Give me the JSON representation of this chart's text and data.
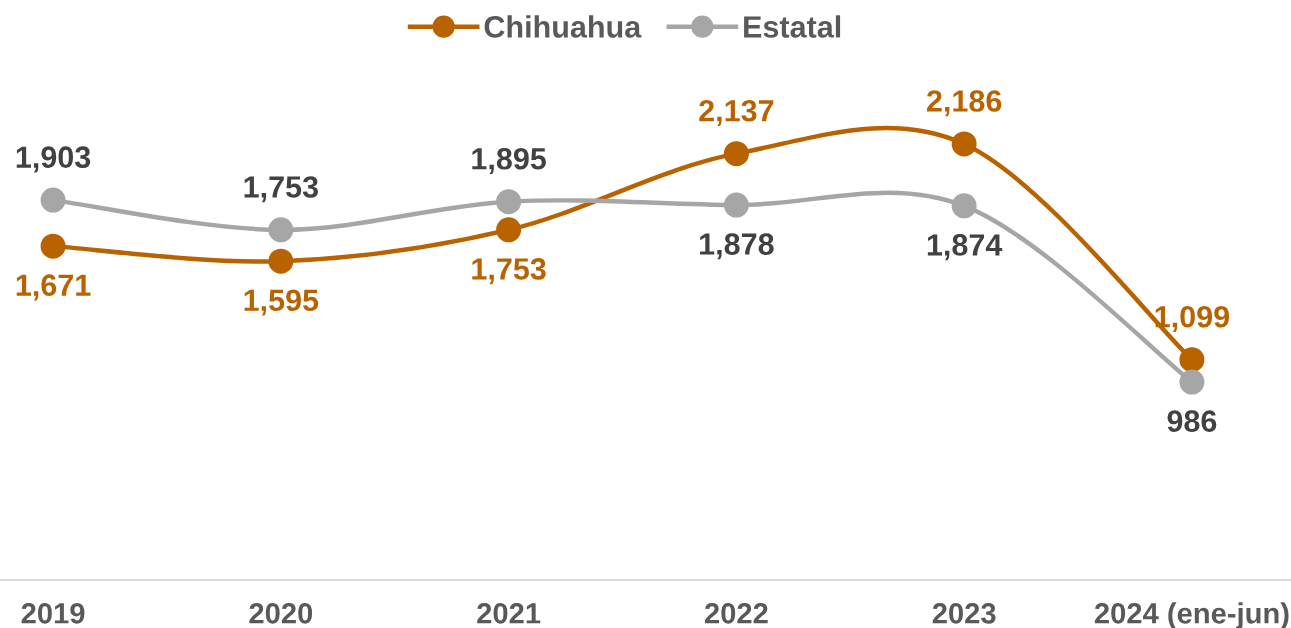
{
  "chart_data": {
    "type": "line",
    "categories": [
      "2019",
      "2020",
      "2021",
      "2022",
      "2023",
      "2024 (ene-jun)"
    ],
    "series": [
      {
        "name": "Chihuahua",
        "color": "#b86200",
        "values": [
          1671,
          1595,
          1753,
          2137,
          2186,
          1099
        ],
        "value_labels": [
          "1,671",
          "1,595",
          "1,753",
          "2,137",
          "2,186",
          "1,099"
        ]
      },
      {
        "name": "Estatal",
        "color": "#a6a6a6",
        "values": [
          1903,
          1753,
          1895,
          1878,
          1874,
          986
        ],
        "value_labels": [
          "1,903",
          "1,753",
          "1,895",
          "1,878",
          "1,874",
          "986"
        ]
      }
    ],
    "legend": "top",
    "marker": "circle",
    "line_style": "solid",
    "tick_labels": "x"
  }
}
